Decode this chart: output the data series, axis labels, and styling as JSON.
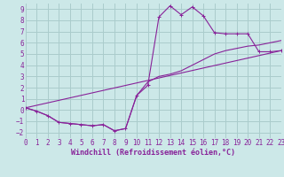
{
  "xlabel": "Windchill (Refroidissement éolien,°C)",
  "bg_color": "#cce8e8",
  "grid_color": "#aacccc",
  "line_color": "#882299",
  "x_min": 0,
  "x_max": 23,
  "y_min": -2.5,
  "y_max": 9.5,
  "x_ticks": [
    0,
    1,
    2,
    3,
    4,
    5,
    6,
    7,
    8,
    9,
    10,
    11,
    12,
    13,
    14,
    15,
    16,
    17,
    18,
    19,
    20,
    21,
    22,
    23
  ],
  "y_ticks": [
    -2,
    -1,
    0,
    1,
    2,
    3,
    4,
    5,
    6,
    7,
    8,
    9
  ],
  "curve1_x": [
    0,
    1,
    2,
    3,
    4,
    5,
    6,
    7,
    8,
    9,
    10,
    11,
    12,
    13,
    14,
    15,
    16,
    17,
    18,
    19,
    20,
    21,
    22,
    23
  ],
  "curve1_y": [
    0.2,
    -0.1,
    -0.5,
    -1.1,
    -1.2,
    -1.3,
    -1.4,
    -1.3,
    -1.85,
    -1.65,
    1.3,
    2.2,
    8.3,
    9.3,
    8.5,
    9.2,
    8.4,
    6.9,
    6.8,
    6.8,
    6.8,
    5.2,
    5.2,
    5.3
  ],
  "curve2_x": [
    0,
    1,
    2,
    3,
    4,
    5,
    6,
    7,
    8,
    9,
    10,
    11,
    12,
    13,
    14,
    15,
    16,
    17,
    18,
    19,
    20,
    21,
    22,
    23
  ],
  "curve2_y": [
    0.2,
    -0.1,
    -0.5,
    -1.1,
    -1.2,
    -1.3,
    -1.4,
    -1.3,
    -1.85,
    -1.65,
    1.3,
    2.5,
    3.0,
    3.2,
    3.5,
    4.0,
    4.5,
    5.0,
    5.3,
    5.5,
    5.7,
    5.8,
    6.0,
    6.2
  ],
  "line3_x": [
    0,
    23
  ],
  "line3_y": [
    0.2,
    5.3
  ],
  "tick_fontsize": 5.5,
  "xlabel_fontsize": 6.0
}
